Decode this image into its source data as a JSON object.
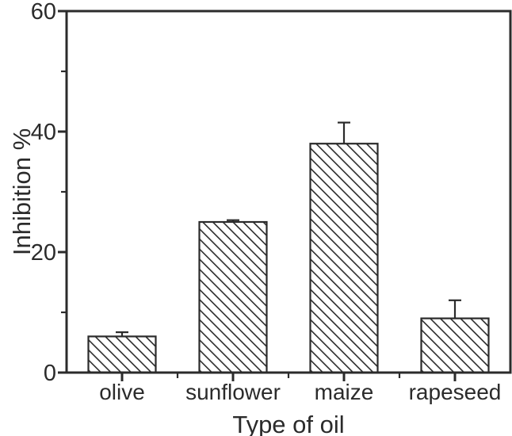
{
  "chart_data": {
    "type": "bar",
    "title": "",
    "xlabel": "Type of oil",
    "ylabel": "Inhibition %",
    "categories": [
      "olive",
      "sunflower",
      "maize",
      "rapeseed"
    ],
    "values": [
      6,
      25,
      38,
      9
    ],
    "errors_plus": [
      0.7,
      0.3,
      3.5,
      3.0
    ],
    "ylim": [
      0,
      60
    ],
    "yticks": [
      0,
      20,
      40,
      60
    ],
    "ytick_labels": [
      "0",
      "20",
      "40",
      "60"
    ],
    "yticks_minor": [
      10,
      30,
      50
    ],
    "bar_style": "diagonal-hatch",
    "bar_outline_color": "#2b2b2b",
    "axis_color": "#2b2b2b",
    "background_color": "#ffffff",
    "grid": "off",
    "legend": "none"
  }
}
